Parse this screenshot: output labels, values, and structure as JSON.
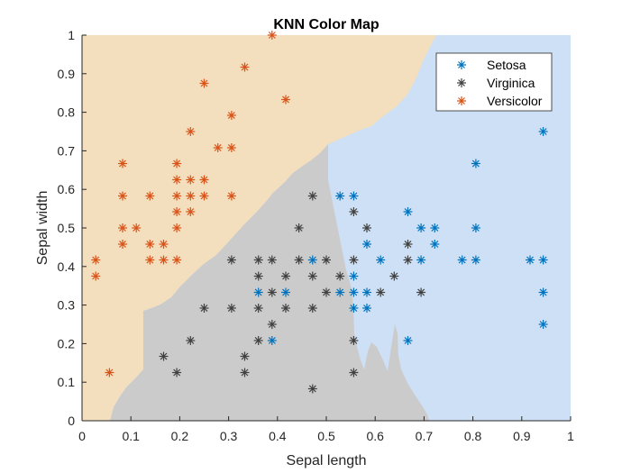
{
  "chart_data": {
    "type": "scatter",
    "title": "KNN Color Map",
    "xlabel": "Sepal length",
    "ylabel": "Sepal width",
    "xlim": [
      0,
      1
    ],
    "ylim": [
      0,
      1
    ],
    "xticks": [
      "0",
      "0.1",
      "0.2",
      "0.3",
      "0.4",
      "0.5",
      "0.6",
      "0.7",
      "0.8",
      "0.9",
      "1"
    ],
    "yticks": [
      "0",
      "0.1",
      "0.2",
      "0.3",
      "0.4",
      "0.5",
      "0.6",
      "0.7",
      "0.8",
      "0.9",
      "1"
    ],
    "legend_position": "top-right",
    "regions": [
      {
        "class": "Versicolor",
        "color": "#f3dfbd"
      },
      {
        "class": "Setosa",
        "color": "#cde0f5"
      },
      {
        "class": "Virginica",
        "color": "#cbcbcb"
      }
    ],
    "series": [
      {
        "name": "Setosa",
        "color": "#0072bd",
        "points": [
          [
            0.944,
            0.75
          ],
          [
            0.806,
            0.667
          ],
          [
            0.667,
            0.542
          ],
          [
            0.528,
            0.583
          ],
          [
            0.556,
            0.583
          ],
          [
            0.583,
            0.458
          ],
          [
            0.694,
            0.5
          ],
          [
            0.722,
            0.5
          ],
          [
            0.806,
            0.5
          ],
          [
            0.722,
            0.458
          ],
          [
            0.611,
            0.417
          ],
          [
            0.694,
            0.417
          ],
          [
            0.778,
            0.417
          ],
          [
            0.806,
            0.417
          ],
          [
            0.917,
            0.417
          ],
          [
            0.944,
            0.417
          ],
          [
            0.472,
            0.417
          ],
          [
            0.556,
            0.375
          ],
          [
            0.528,
            0.333
          ],
          [
            0.556,
            0.333
          ],
          [
            0.583,
            0.333
          ],
          [
            0.361,
            0.333
          ],
          [
            0.417,
            0.333
          ],
          [
            0.556,
            0.292
          ],
          [
            0.583,
            0.292
          ],
          [
            0.944,
            0.333
          ],
          [
            0.944,
            0.25
          ],
          [
            0.389,
            0.208
          ],
          [
            0.667,
            0.208
          ]
        ]
      },
      {
        "name": "Virginica",
        "color": "#404040",
        "points": [
          [
            0.472,
            0.583
          ],
          [
            0.556,
            0.542
          ],
          [
            0.444,
            0.5
          ],
          [
            0.583,
            0.5
          ],
          [
            0.667,
            0.458
          ],
          [
            0.306,
            0.417
          ],
          [
            0.361,
            0.417
          ],
          [
            0.389,
            0.417
          ],
          [
            0.444,
            0.417
          ],
          [
            0.5,
            0.417
          ],
          [
            0.556,
            0.417
          ],
          [
            0.667,
            0.417
          ],
          [
            0.361,
            0.375
          ],
          [
            0.417,
            0.375
          ],
          [
            0.472,
            0.375
          ],
          [
            0.528,
            0.375
          ],
          [
            0.639,
            0.375
          ],
          [
            0.389,
            0.333
          ],
          [
            0.5,
            0.333
          ],
          [
            0.611,
            0.333
          ],
          [
            0.694,
            0.333
          ],
          [
            0.25,
            0.292
          ],
          [
            0.306,
            0.292
          ],
          [
            0.361,
            0.292
          ],
          [
            0.417,
            0.292
          ],
          [
            0.472,
            0.292
          ],
          [
            0.389,
            0.25
          ],
          [
            0.222,
            0.208
          ],
          [
            0.361,
            0.208
          ],
          [
            0.556,
            0.208
          ],
          [
            0.167,
            0.167
          ],
          [
            0.333,
            0.167
          ],
          [
            0.194,
            0.125
          ],
          [
            0.333,
            0.125
          ],
          [
            0.556,
            0.125
          ],
          [
            0.472,
            0.083
          ]
        ]
      },
      {
        "name": "Versicolor",
        "color": "#d95319",
        "points": [
          [
            0.389,
            1.0
          ],
          [
            0.333,
            0.917
          ],
          [
            0.25,
            0.875
          ],
          [
            0.417,
            0.833
          ],
          [
            0.306,
            0.792
          ],
          [
            0.222,
            0.75
          ],
          [
            0.278,
            0.708
          ],
          [
            0.306,
            0.708
          ],
          [
            0.083,
            0.667
          ],
          [
            0.194,
            0.667
          ],
          [
            0.194,
            0.625
          ],
          [
            0.222,
            0.625
          ],
          [
            0.25,
            0.625
          ],
          [
            0.083,
            0.583
          ],
          [
            0.139,
            0.583
          ],
          [
            0.194,
            0.583
          ],
          [
            0.222,
            0.583
          ],
          [
            0.25,
            0.583
          ],
          [
            0.306,
            0.583
          ],
          [
            0.194,
            0.542
          ],
          [
            0.222,
            0.542
          ],
          [
            0.083,
            0.5
          ],
          [
            0.111,
            0.5
          ],
          [
            0.194,
            0.5
          ],
          [
            0.083,
            0.458
          ],
          [
            0.139,
            0.458
          ],
          [
            0.167,
            0.458
          ],
          [
            0.028,
            0.417
          ],
          [
            0.139,
            0.417
          ],
          [
            0.167,
            0.417
          ],
          [
            0.194,
            0.417
          ],
          [
            0.028,
            0.375
          ],
          [
            0.056,
            0.125
          ]
        ]
      }
    ]
  }
}
